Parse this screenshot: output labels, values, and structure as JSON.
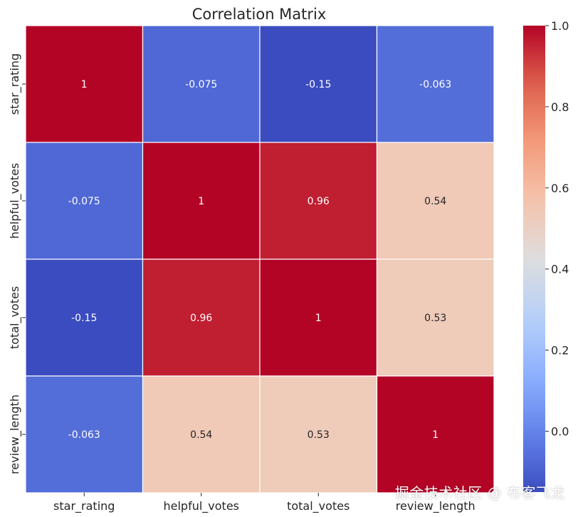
{
  "chart_data": {
    "type": "heatmap",
    "title": "Correlation Matrix",
    "xlabels": [
      "star_rating",
      "helpful_votes",
      "total_votes",
      "review_length"
    ],
    "ylabels": [
      "star_rating",
      "helpful_votes",
      "total_votes",
      "review_length"
    ],
    "values": [
      [
        1,
        -0.075,
        -0.15,
        -0.063
      ],
      [
        -0.075,
        1,
        0.96,
        0.54
      ],
      [
        -0.15,
        0.96,
        1,
        0.53
      ],
      [
        -0.063,
        0.54,
        0.53,
        1
      ]
    ],
    "annotations": [
      [
        "1",
        "-0.075",
        "-0.15",
        "-0.063"
      ],
      [
        "-0.075",
        "1",
        "0.96",
        "0.54"
      ],
      [
        "-0.15",
        "0.96",
        "1",
        "0.53"
      ],
      [
        "-0.063",
        "0.54",
        "0.53",
        "1"
      ]
    ],
    "colormap": "coolwarm",
    "vmin": -0.15,
    "vmax": 1.0,
    "colorbar_ticks": [
      "0.0",
      "0.2",
      "0.4",
      "0.6",
      "0.8",
      "1.0"
    ],
    "colorbar_tick_values": [
      0.0,
      0.2,
      0.4,
      0.6,
      0.8,
      1.0
    ]
  },
  "watermark": "掘金技术社区 @ 布客飞龙"
}
